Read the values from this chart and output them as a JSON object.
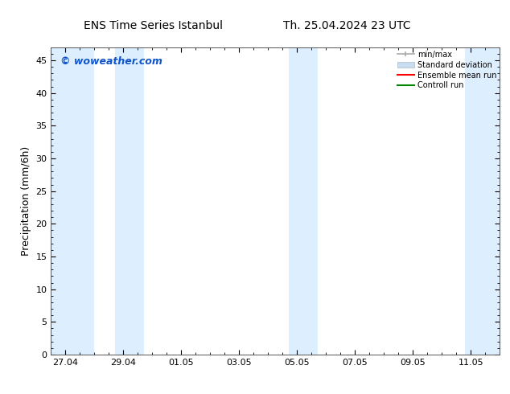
{
  "title_left": "ENS Time Series Istanbul",
  "title_right": "Th. 25.04.2024 23 UTC",
  "ylabel": "Precipitation (mm/6h)",
  "xlabel": "",
  "ylim": [
    0,
    47
  ],
  "yticks": [
    0,
    5,
    10,
    15,
    20,
    25,
    30,
    35,
    40,
    45
  ],
  "xtick_labels": [
    "27.04",
    "29.04",
    "01.05",
    "03.05",
    "05.05",
    "07.05",
    "09.05",
    "11.05"
  ],
  "xtick_positions": [
    0,
    2,
    4,
    6,
    8,
    10,
    12,
    14
  ],
  "x_min": -0.5,
  "x_max": 15.0,
  "background_color": "#ffffff",
  "plot_bg_color": "#ffffff",
  "shaded_bands": [
    {
      "x_start": -0.5,
      "x_end": 1.0
    },
    {
      "x_start": 1.7,
      "x_end": 2.7
    },
    {
      "x_start": 7.7,
      "x_end": 8.7
    },
    {
      "x_start": 13.8,
      "x_end": 15.0
    }
  ],
  "shaded_color": "#ddeeff",
  "watermark_text": "© woweather.com",
  "watermark_color": "#1155cc",
  "legend_items": [
    {
      "label": "min/max",
      "color": "#aaaaaa",
      "type": "errorbar"
    },
    {
      "label": "Standard deviation",
      "color": "#c8ddef",
      "type": "box"
    },
    {
      "label": "Ensemble mean run",
      "color": "#ff0000",
      "type": "line"
    },
    {
      "label": "Controll run",
      "color": "#008800",
      "type": "line"
    }
  ]
}
